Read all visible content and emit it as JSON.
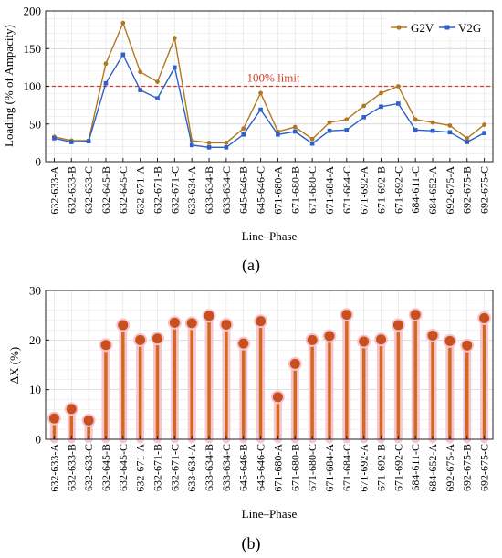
{
  "categories": [
    "632-633-A",
    "632-633-B",
    "632-633-C",
    "632-645-B",
    "632-645-C",
    "632-671-A",
    "632-671-B",
    "632-671-C",
    "633-634-A",
    "633-634-B",
    "633-634-C",
    "645-646-B",
    "645-646-C",
    "671-680-A",
    "671-680-B",
    "671-680-C",
    "671-684-A",
    "671-684-C",
    "671-692-A",
    "671-692-B",
    "671-692-C",
    "684-611-C",
    "684-652-A",
    "692-675-A",
    "692-675-B",
    "692-675-C"
  ],
  "colors": {
    "g2v": "#b07820",
    "v2g": "#2f5fc8",
    "limit": "#d43a2a",
    "stem": "#d2691e",
    "marker": "#c8501e",
    "halo": "#f5c6cf",
    "grid": "#cccccc"
  },
  "chart_data": [
    {
      "type": "line",
      "panel_label": "(a)",
      "ylabel": "Loading (% of Ampacity)",
      "xlabel": "Line–Phase",
      "ylim": [
        0,
        200
      ],
      "yticks": [
        0,
        50,
        100,
        150,
        200
      ],
      "grid": true,
      "legend": "top-right",
      "annotation": "100% limit",
      "reference_line": 100,
      "series": [
        {
          "name": "G2V",
          "values": [
            33,
            28,
            28,
            130,
            184,
            119,
            106,
            164,
            28,
            25,
            25,
            44,
            91,
            40,
            46,
            30,
            52,
            56,
            74,
            91,
            100,
            56,
            52,
            48,
            31,
            49
          ]
        },
        {
          "name": "V2G",
          "values": [
            31,
            26,
            27,
            104,
            142,
            95,
            84,
            125,
            22,
            19,
            19,
            36,
            69,
            36,
            40,
            24,
            41,
            42,
            59,
            73,
            77,
            42,
            41,
            39,
            26,
            38
          ]
        }
      ]
    },
    {
      "type": "stem",
      "panel_label": "(b)",
      "ylabel": "ΔX (%)",
      "xlabel": "Line–Phase",
      "ylim": [
        0,
        30
      ],
      "yticks": [
        0,
        10,
        20,
        30
      ],
      "grid": true,
      "values": [
        4.2,
        6.1,
        3.8,
        19.0,
        23.0,
        20.0,
        20.3,
        23.5,
        23.4,
        24.9,
        23.1,
        19.3,
        23.8,
        8.5,
        15.2,
        20.0,
        20.8,
        25.1,
        19.7,
        20.1,
        23.0,
        25.1,
        20.9,
        19.8,
        18.9,
        24.4
      ]
    }
  ]
}
